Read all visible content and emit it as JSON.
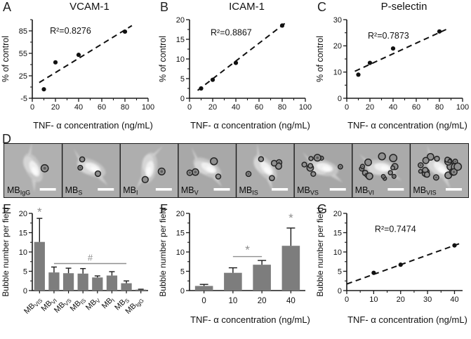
{
  "colors": {
    "bar": "#7d7d7d",
    "annotation": "#8f8f8f",
    "axis": "#1a1a1a",
    "text": "#111111",
    "micro_bg": "#a9a9a9",
    "point": "#111111"
  },
  "panels": {
    "A": {
      "letter": "A",
      "title": "VCAM-1"
    },
    "B": {
      "letter": "B",
      "title": "ICAM-1"
    },
    "C": {
      "letter": "C",
      "title": "P-selectin"
    },
    "D": {
      "letter": "D"
    },
    "E": {
      "letter": "E"
    },
    "F": {
      "letter": "F"
    },
    "G": {
      "letter": "G"
    }
  },
  "micrographs": [
    {
      "base": "MB",
      "sub": "IgG",
      "bubbles": 1
    },
    {
      "base": "MB",
      "sub": "S",
      "bubbles": 3
    },
    {
      "base": "MB",
      "sub": "I",
      "bubbles": 2
    },
    {
      "base": "MB",
      "sub": "V",
      "bubbles": 4
    },
    {
      "base": "MB",
      "sub": "IS",
      "bubbles": 6
    },
    {
      "base": "MB",
      "sub": "VS",
      "bubbles": 8
    },
    {
      "base": "MB",
      "sub": "VI",
      "bubbles": 14
    },
    {
      "base": "MB",
      "sub": "VIS",
      "bubbles": 24
    }
  ],
  "chart_data": [
    {
      "id": "A",
      "type": "scatter",
      "title": "VCAM-1",
      "xlabel": "TNF- α concentration (ng/mL)",
      "ylabel": "% of control",
      "x": [
        10,
        20,
        40,
        80
      ],
      "y": [
        7,
        43,
        53,
        84
      ],
      "xlim": [
        0,
        100
      ],
      "xticks": [
        0,
        20,
        40,
        60,
        80,
        100
      ],
      "ylim": [
        -5,
        100
      ],
      "yticks": [
        -5,
        25,
        55,
        85
      ],
      "trend": [
        [
          6,
          16
        ],
        [
          86,
          92
        ]
      ],
      "r2_label": "R²=0.8276",
      "r2_pos": [
        0.33,
        0.18
      ]
    },
    {
      "id": "B",
      "type": "scatter",
      "title": "ICAM-1",
      "xlabel": "TNF- α concentration (ng/mL)",
      "ylabel": "% of control",
      "x": [
        10,
        20,
        40,
        80
      ],
      "y": [
        2.5,
        4.7,
        9,
        18.5
      ],
      "xlim": [
        0,
        100
      ],
      "xticks": [
        0,
        20,
        40,
        60,
        80,
        100
      ],
      "ylim": [
        0,
        20
      ],
      "yticks": [
        0,
        5,
        10,
        15,
        20
      ],
      "trend": [
        [
          7,
          2
        ],
        [
          83,
          19.2
        ]
      ],
      "r2_label": "R²=0.8867",
      "r2_pos": [
        0.36,
        0.2
      ]
    },
    {
      "id": "C",
      "type": "scatter",
      "title": "P-selectin",
      "xlabel": "TNF- α concentration (ng/mL)",
      "ylabel": "% of control",
      "x": [
        10,
        20,
        40,
        80
      ],
      "y": [
        9,
        13.5,
        19,
        25.5
      ],
      "xlim": [
        0,
        100
      ],
      "xticks": [
        0,
        20,
        40,
        60,
        80,
        100
      ],
      "ylim": [
        0,
        30
      ],
      "yticks": [
        0,
        10,
        20,
        30
      ],
      "trend": [
        [
          7,
          10.3
        ],
        [
          86,
          26.3
        ]
      ],
      "r2_label": "R²=0.7873",
      "r2_pos": [
        0.36,
        0.24
      ]
    },
    {
      "id": "E",
      "type": "bar",
      "ylabel": "Bubble number per field",
      "categories": [
        {
          "base": "MB",
          "sub": "VIS"
        },
        {
          "base": "MB",
          "sub": "VI"
        },
        {
          "base": "MB",
          "sub": "VS"
        },
        {
          "base": "MB",
          "sub": "IS"
        },
        {
          "base": "MB",
          "sub": "V"
        },
        {
          "base": "MB",
          "sub": "I"
        },
        {
          "base": "MB",
          "sub": "S"
        },
        {
          "base": "MB",
          "sub": "IgG"
        }
      ],
      "values": [
        12.6,
        4.7,
        4.5,
        4.4,
        3.4,
        3.9,
        1.9,
        0.25
      ],
      "errors": [
        6.1,
        1.4,
        1.3,
        1.3,
        0.4,
        1.0,
        0.6,
        0.1
      ],
      "ylim": [
        0,
        20
      ],
      "yticks": [
        0,
        5,
        10,
        15,
        20
      ],
      "rotate_labels": true,
      "annotations": [
        {
          "kind": "sym",
          "sym": "*",
          "bar": 0,
          "yval": 19.4
        },
        {
          "kind": "line",
          "sym": "#",
          "from": 1,
          "to": 6,
          "yval": 7.0
        }
      ]
    },
    {
      "id": "F",
      "type": "bar",
      "ylabel": "Bubble number per field",
      "xlabel": "TNF- α concentration (ng/mL)",
      "categories": [
        "0",
        "10",
        "20",
        "40"
      ],
      "values": [
        1.2,
        4.6,
        6.7,
        11.6
      ],
      "errors": [
        0.4,
        1.3,
        1.1,
        4.6
      ],
      "ylim": [
        0,
        20
      ],
      "yticks": [
        0,
        5,
        10,
        15,
        20
      ],
      "annotations": [
        {
          "kind": "sym",
          "sym": "*",
          "bar": 3,
          "yval": 17.8
        },
        {
          "kind": "line",
          "sym": "*",
          "from": 1,
          "to": 2,
          "yval": 8.8
        }
      ]
    },
    {
      "id": "G",
      "type": "scatter",
      "xlabel": "TNF- α  concentration  (ng/mL)",
      "ylabel": "Bubble number per field",
      "x": [
        10,
        20,
        40
      ],
      "y": [
        4.6,
        6.7,
        11.7
      ],
      "xlim": [
        0,
        43
      ],
      "xticks": [
        0,
        10,
        20,
        30,
        40
      ],
      "ylim": [
        0,
        20
      ],
      "yticks": [
        0,
        5,
        10,
        15,
        20
      ],
      "trend": [
        [
          0,
          1.7
        ],
        [
          42,
          12.2
        ]
      ],
      "r2_label": "R²=0.7474",
      "r2_pos": [
        0.42,
        0.24
      ]
    }
  ]
}
